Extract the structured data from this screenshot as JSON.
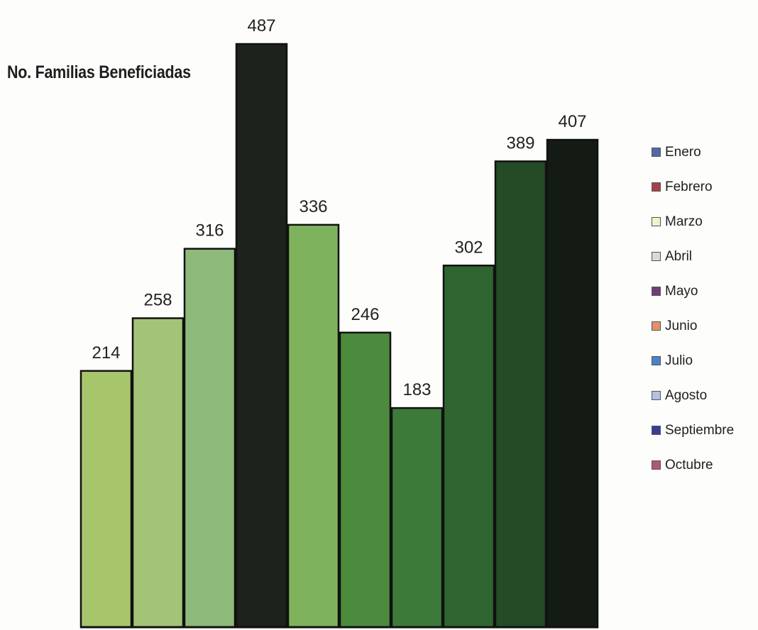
{
  "chart_data": {
    "type": "bar",
    "title": "No. Familias Beneficiadas",
    "xlabel": "",
    "ylabel": "",
    "ylim": [
      0,
      487
    ],
    "grid": false,
    "legend_position": "right",
    "categories": [
      "Enero",
      "Febrero",
      "Marzo",
      "Abril",
      "Mayo",
      "Junio",
      "Julio",
      "Agosto",
      "Septiembre",
      "Octubre"
    ],
    "values": [
      214,
      258,
      316,
      487,
      336,
      246,
      183,
      302,
      389,
      407
    ],
    "bar_colors": [
      "#a7c66c",
      "#a3c476",
      "#8db97a",
      "#1c231b",
      "#7fb25c",
      "#4c8a3d",
      "#3c7a3a",
      "#2f6530",
      "#244a26",
      "#141b14"
    ],
    "legend": [
      {
        "label": "Enero",
        "color": "#5468a6"
      },
      {
        "label": "Febrero",
        "color": "#a6404e"
      },
      {
        "label": "Marzo",
        "color": "#eef4c8"
      },
      {
        "label": "Abril",
        "color": "#cfe0d2"
      },
      {
        "label": "Mayo",
        "color": "#6e3f7a"
      },
      {
        "label": "Junio",
        "color": "#e3906a"
      },
      {
        "label": "Julio",
        "color": "#4a84c8"
      },
      {
        "label": "Agosto",
        "color": "#b7bfe6"
      },
      {
        "label": "Septiembre",
        "color": "#3a3c96"
      },
      {
        "label": "Octubre",
        "color": "#b2567e"
      }
    ]
  }
}
